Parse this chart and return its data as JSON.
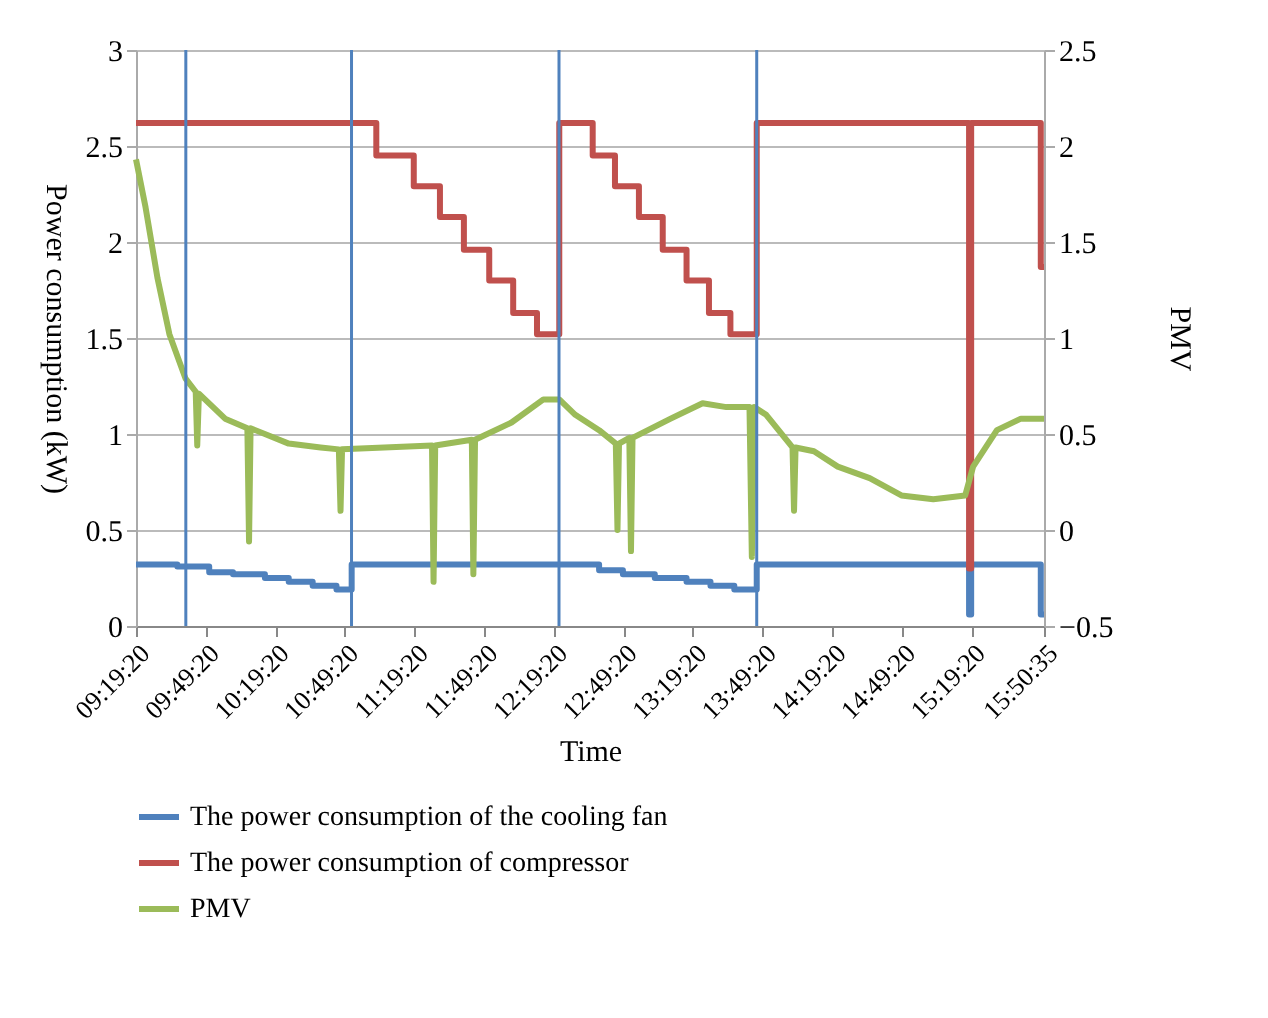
{
  "chart_data": {
    "type": "line",
    "xlabel": "Time",
    "ylabel": "Power consumption (kW)",
    "y2label": "PMV",
    "xlim": [
      9.3222,
      15.8431
    ],
    "xticks": [
      {
        "value": 9.3222,
        "label": "09:19:20"
      },
      {
        "value": 9.8222,
        "label": "09:49:20"
      },
      {
        "value": 10.3222,
        "label": "10:19:20"
      },
      {
        "value": 10.8222,
        "label": "10:49:20"
      },
      {
        "value": 11.3222,
        "label": "11:19:20"
      },
      {
        "value": 11.8222,
        "label": "11:49:20"
      },
      {
        "value": 12.3222,
        "label": "12:19:20"
      },
      {
        "value": 12.8222,
        "label": "12:49:20"
      },
      {
        "value": 13.3222,
        "label": "13:19:20"
      },
      {
        "value": 13.8222,
        "label": "13:49:20"
      },
      {
        "value": 14.3222,
        "label": "14:19:20"
      },
      {
        "value": 14.8222,
        "label": "14:49:20"
      },
      {
        "value": 15.3222,
        "label": "15:19:20"
      },
      {
        "value": 15.8431,
        "label": "15:50:35"
      }
    ],
    "ylim": [
      0,
      3
    ],
    "yticks": [
      0,
      0.5,
      1,
      1.5,
      2,
      2.5,
      3
    ],
    "y2lim": [
      -0.5,
      2.5
    ],
    "y2ticks": [
      -0.5,
      0,
      0.5,
      1,
      1.5,
      2,
      2.5
    ],
    "grid": "y",
    "legend": "bottom",
    "line_style": "solid",
    "ref_lines": [
      {
        "axis": "x",
        "value": 9.68,
        "color": "#4f81bd"
      },
      {
        "axis": "x",
        "value": 10.87,
        "color": "#4f81bd"
      },
      {
        "axis": "x",
        "value": 12.36,
        "color": "#4f81bd"
      },
      {
        "axis": "x",
        "value": 13.78,
        "color": "#4f81bd"
      }
    ],
    "series": [
      {
        "name": "The power consumption of the cooling fan",
        "color": "#4f81bd",
        "x": [
          9.3222,
          9.619,
          9.619,
          9.848,
          9.848,
          10.019,
          10.019,
          10.248,
          10.248,
          10.419,
          10.419,
          10.591,
          10.591,
          10.762,
          10.762,
          10.871,
          10.871,
          12.362,
          12.648,
          12.648,
          12.819,
          12.819,
          13.048,
          13.048,
          13.276,
          13.276,
          13.448,
          13.448,
          13.619,
          13.619,
          13.78,
          13.78,
          15.305,
          15.305,
          15.32,
          15.32,
          15.82,
          15.82,
          15.8431
        ],
        "values": [
          0.32,
          0.32,
          0.31,
          0.31,
          0.28,
          0.28,
          0.27,
          0.27,
          0.25,
          0.25,
          0.23,
          0.23,
          0.21,
          0.21,
          0.19,
          0.19,
          0.32,
          0.32,
          0.32,
          0.29,
          0.29,
          0.27,
          0.27,
          0.25,
          0.25,
          0.23,
          0.23,
          0.21,
          0.21,
          0.19,
          0.19,
          0.32,
          0.32,
          0.06,
          0.06,
          0.32,
          0.32,
          0.06,
          0.06
        ]
      },
      {
        "name": "The power consumption of compressor",
        "color": "#c0504d",
        "x": [
          9.3222,
          11.048,
          11.048,
          11.317,
          11.317,
          11.505,
          11.505,
          11.677,
          11.677,
          11.859,
          11.859,
          12.031,
          12.031,
          12.202,
          12.202,
          12.362,
          12.362,
          12.602,
          12.602,
          12.762,
          12.762,
          12.934,
          12.934,
          13.105,
          13.105,
          13.276,
          13.276,
          13.437,
          13.437,
          13.591,
          13.591,
          13.78,
          13.78,
          15.305,
          15.305,
          15.32,
          15.32,
          15.82,
          15.82,
          15.8431
        ],
        "values": [
          2.62,
          2.62,
          2.45,
          2.45,
          2.29,
          2.29,
          2.13,
          2.13,
          1.96,
          1.96,
          1.8,
          1.8,
          1.63,
          1.63,
          1.52,
          1.52,
          2.62,
          2.62,
          2.45,
          2.45,
          2.29,
          2.29,
          2.13,
          2.13,
          1.96,
          1.96,
          1.8,
          1.8,
          1.63,
          1.63,
          1.52,
          1.52,
          2.62,
          2.62,
          0.3,
          0.3,
          2.62,
          2.62,
          1.87,
          1.87
        ]
      },
      {
        "name": "PMV",
        "color": "#9bbb59",
        "axis": "y2",
        "x": [
          9.3222,
          9.391,
          9.477,
          9.562,
          9.677,
          9.751,
          9.762,
          9.774,
          9.962,
          10.122,
          10.134,
          10.145,
          10.419,
          10.648,
          10.779,
          10.791,
          10.802,
          11.105,
          11.448,
          11.459,
          11.471,
          11.734,
          11.745,
          11.757,
          12.019,
          12.248,
          12.362,
          12.477,
          12.648,
          12.768,
          12.78,
          12.791,
          12.865,
          12.877,
          12.888,
          13.162,
          13.391,
          13.562,
          13.728,
          13.745,
          13.762,
          13.848,
          14.037,
          14.048,
          14.059,
          14.191,
          14.362,
          14.591,
          14.819,
          15.048,
          15.277,
          15.334,
          15.505,
          15.677,
          15.8431
        ],
        "values": [
          1.93,
          1.68,
          1.31,
          1.02,
          0.79,
          0.72,
          0.44,
          0.71,
          0.58,
          0.53,
          -0.06,
          0.53,
          0.45,
          0.43,
          0.42,
          0.1,
          0.42,
          0.43,
          0.44,
          -0.27,
          0.44,
          0.47,
          -0.23,
          0.47,
          0.56,
          0.68,
          0.68,
          0.6,
          0.52,
          0.45,
          0,
          0.45,
          0.48,
          -0.11,
          0.48,
          0.58,
          0.66,
          0.64,
          0.64,
          -0.14,
          0.64,
          0.6,
          0.43,
          0.1,
          0.43,
          0.41,
          0.33,
          0.27,
          0.18,
          0.16,
          0.18,
          0.33,
          0.52,
          0.58,
          0.58
        ]
      }
    ]
  }
}
